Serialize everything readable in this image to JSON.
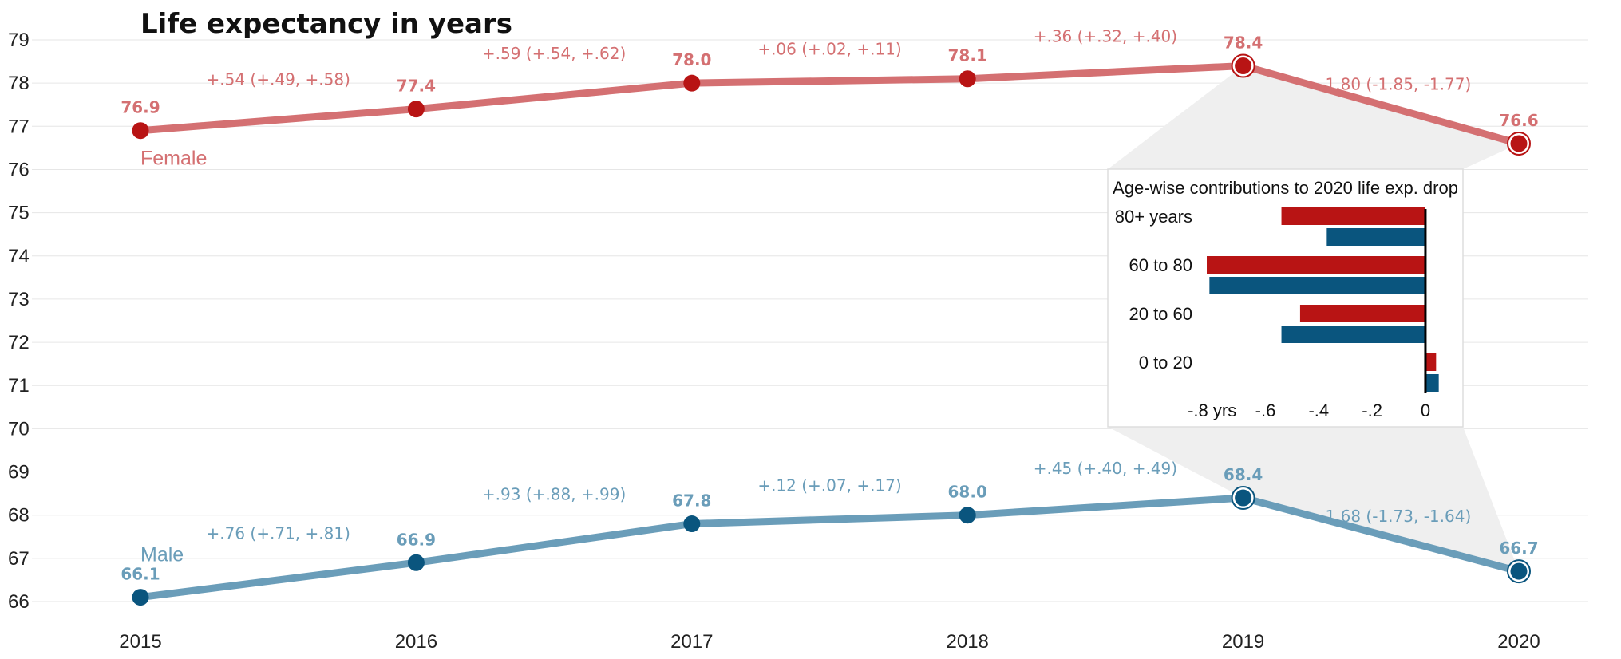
{
  "chart_data": {
    "type": "line",
    "title": "Life expectancy in years",
    "x": [
      "2015",
      "2016",
      "2017",
      "2018",
      "2019",
      "2020"
    ],
    "ylim": [
      66,
      79
    ],
    "yticks": [
      "66",
      "67",
      "68",
      "69",
      "70",
      "71",
      "72",
      "73",
      "74",
      "75",
      "76",
      "77",
      "78",
      "79"
    ],
    "grid": true,
    "series": [
      {
        "name": "Female",
        "color": "#d47072",
        "marker_color": "#b81414",
        "values": [
          76.9,
          77.4,
          78.0,
          78.1,
          78.4,
          76.6
        ],
        "point_labels": [
          "76.9",
          "77.4",
          "78.0",
          "78.1",
          "78.4",
          "76.6"
        ],
        "change_labels": [
          "+.54 (+.49, +.58)",
          "+.59 (+.54, +.62)",
          "+.06 (+.02, +.11)",
          "+.36 (+.32, +.40)",
          "-1.80 (-1.85, -1.77)"
        ]
      },
      {
        "name": "Male",
        "color": "#6a9db9",
        "marker_color": "#0a557e",
        "values": [
          66.1,
          66.9,
          67.8,
          68.0,
          68.4,
          66.7
        ],
        "point_labels": [
          "66.1",
          "66.9",
          "67.8",
          "68.0",
          "68.4",
          "66.7"
        ],
        "change_labels": [
          "+.76 (+.71, +.81)",
          "+.93 (+.88, +.99)",
          "+.12 (+.07, +.17)",
          "+.45 (+.40, +.49)",
          "-1.68 (-1.73, -1.64)"
        ]
      }
    ],
    "inset": {
      "type": "bar",
      "orientation": "horizontal",
      "title": "Age-wise contributions to 2020 life exp. drop",
      "categories": [
        "80+ years",
        "60 to 80",
        "20 to 60",
        "0 to 20"
      ],
      "xlim": [
        -0.82,
        0.06
      ],
      "xticks": [
        {
          "value": -0.8,
          "label": "-.8 yrs"
        },
        {
          "value": -0.6,
          "label": "-.6"
        },
        {
          "value": -0.4,
          "label": "-.4"
        },
        {
          "value": -0.2,
          "label": "-.2"
        },
        {
          "value": 0,
          "label": "0"
        }
      ],
      "series": [
        {
          "name": "Female",
          "color": "#b81414",
          "values": [
            -0.54,
            -0.82,
            -0.47,
            0.04
          ]
        },
        {
          "name": "Male",
          "color": "#0a557e",
          "values": [
            -0.37,
            -0.81,
            -0.54,
            0.05
          ]
        }
      ]
    }
  }
}
